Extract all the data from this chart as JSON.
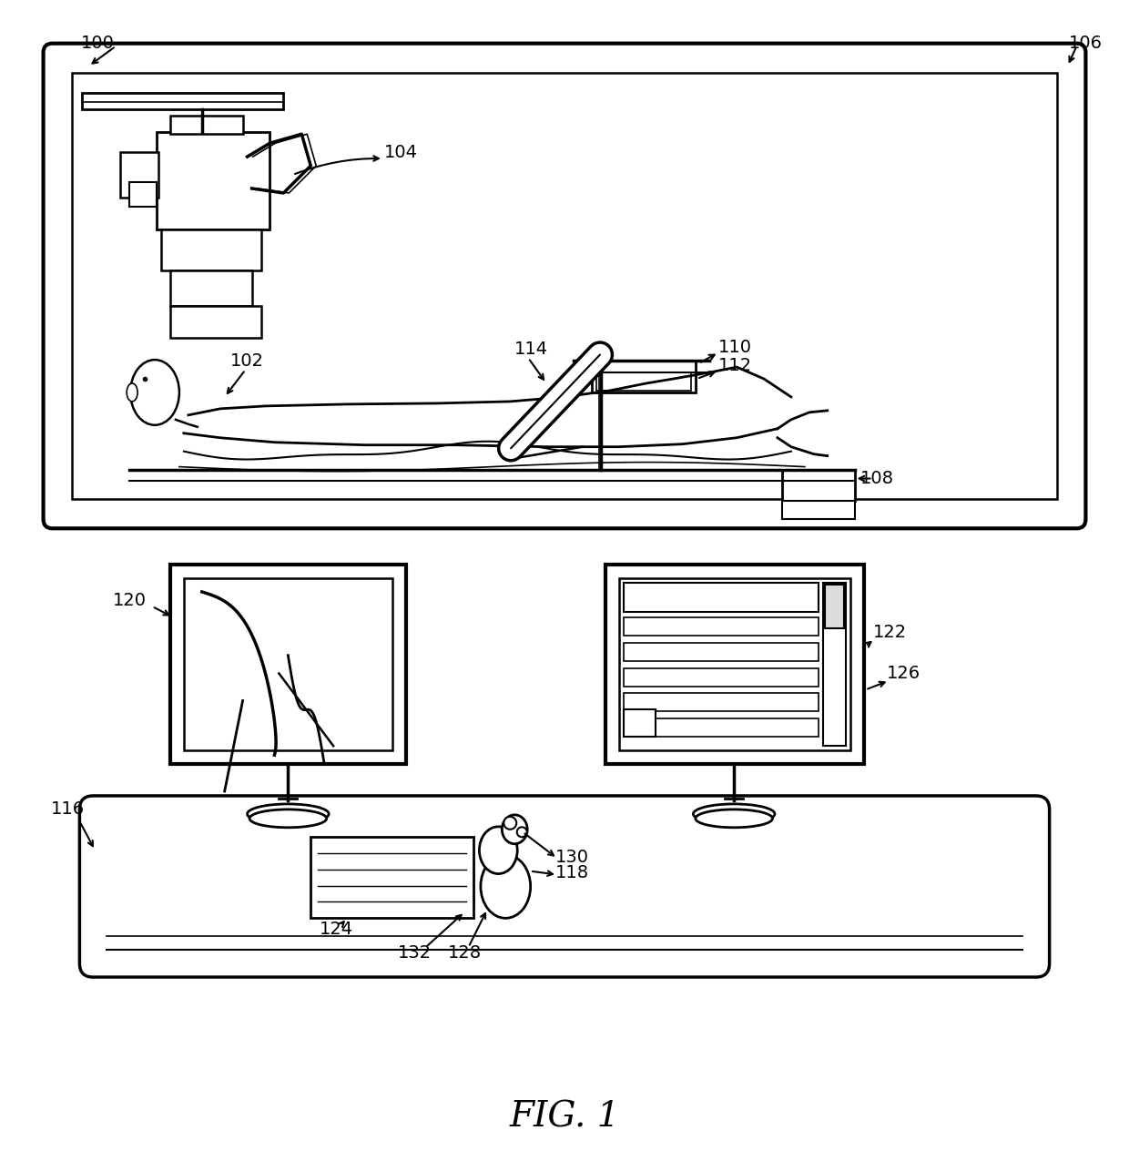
{
  "bg_color": "#ffffff",
  "line_color": "#000000",
  "fig_label": "FIG. 1",
  "font_size": 13,
  "fig_font_size": 28
}
